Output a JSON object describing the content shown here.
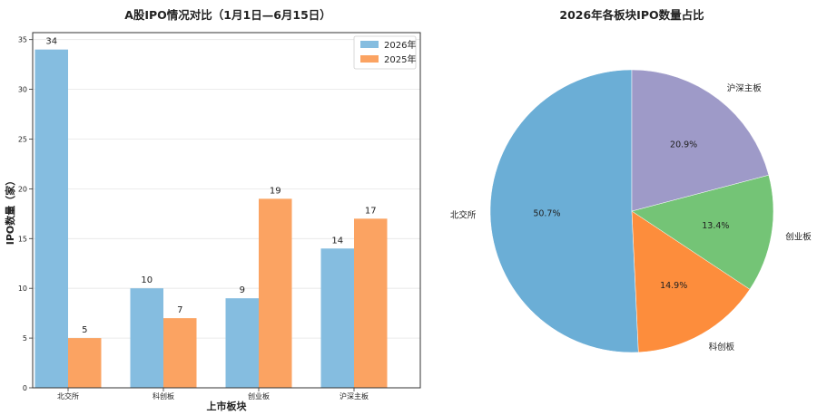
{
  "chart_data": [
    {
      "type": "bar",
      "title": "A股IPO情况对比（1月1日—6月15日）",
      "xlabel": "上市板块",
      "ylabel": "IPO数量（家）",
      "categories": [
        "北交所",
        "科创板",
        "创业板",
        "沪深主板"
      ],
      "series": [
        {
          "name": "2026年",
          "values": [
            34,
            10,
            9,
            14
          ],
          "color": "#85bde0"
        },
        {
          "name": "2025年",
          "values": [
            5,
            7,
            19,
            17
          ],
          "color": "#fba362"
        }
      ],
      "ylim": [
        0,
        35.7
      ],
      "yticks": [
        0,
        5,
        10,
        15,
        20,
        25,
        30,
        35
      ],
      "ytick_labels": [
        "0",
        "5",
        "10",
        "15",
        "20",
        "25",
        "30",
        "35"
      ],
      "grid": true,
      "legend_position": "top-right"
    },
    {
      "type": "pie",
      "title": "2026年各板块IPO数量占比",
      "labels": [
        "北交所",
        "科创板",
        "创业板",
        "沪深主板"
      ],
      "values": [
        34,
        10,
        9,
        14
      ],
      "percent_labels": [
        "50.7%",
        "14.9%",
        "13.4%",
        "20.9%"
      ],
      "colors": [
        "#6baed6",
        "#fd8d3c",
        "#74c476",
        "#9e9ac8"
      ],
      "start_angle": 90,
      "direction": "counterclockwise"
    }
  ]
}
